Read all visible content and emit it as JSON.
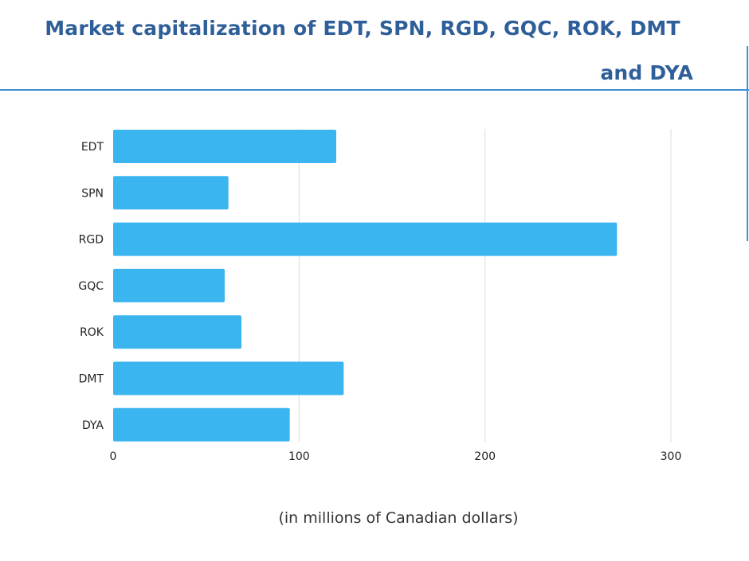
{
  "chart_data": {
    "type": "bar",
    "orientation": "horizontal",
    "title": "Market capitalization of EDT, SPN, RGD, GQC, ROK, DMT and DYA",
    "xlabel": "(in millions of Canadian dollars)",
    "ylabel": "",
    "categories": [
      "EDT",
      "SPN",
      "RGD",
      "GQC",
      "ROK",
      "DMT",
      "DYA"
    ],
    "values": [
      120,
      62,
      271,
      60,
      69,
      124,
      95
    ],
    "xlim": [
      0,
      300
    ],
    "xticks": [
      "0",
      "100",
      "200",
      "300"
    ],
    "grid": "vertical",
    "legend": "none",
    "bar_color": "#3bb5ef",
    "title_color": "#2f5f98"
  }
}
